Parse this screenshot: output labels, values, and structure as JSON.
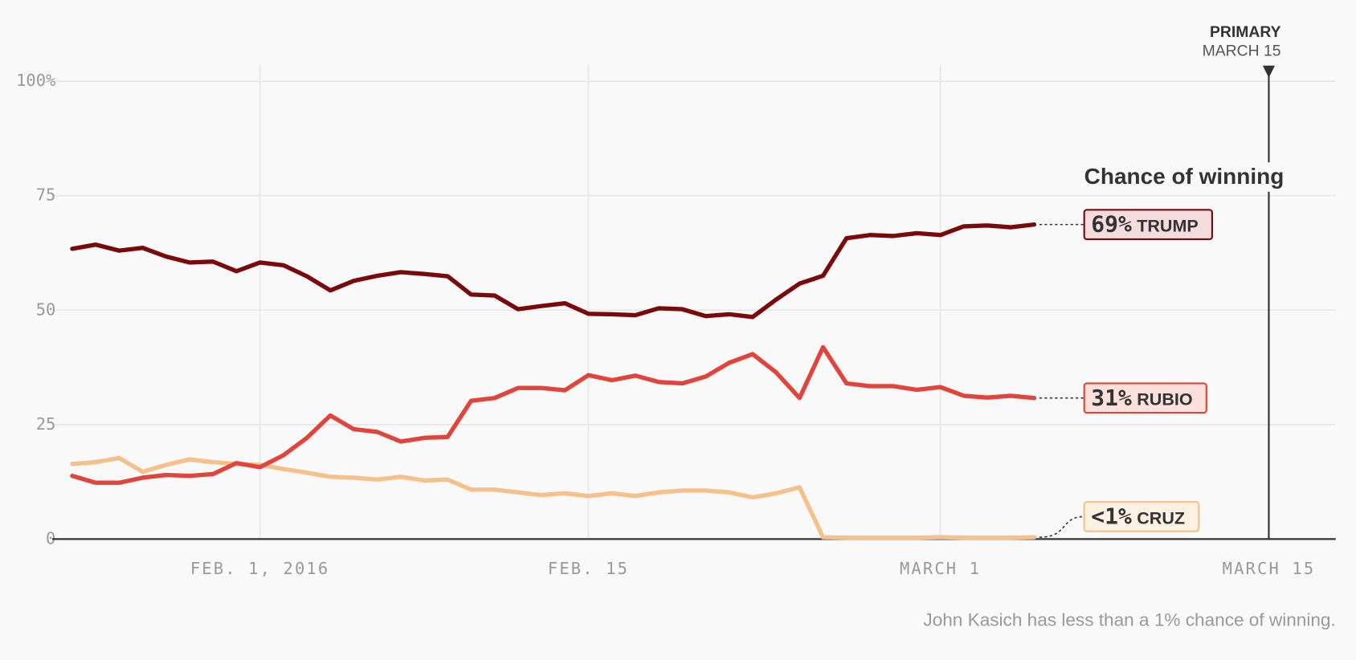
{
  "chart_data": {
    "type": "line",
    "x": [
      "2016-01-24",
      "2016-01-25",
      "2016-01-26",
      "2016-01-27",
      "2016-01-28",
      "2016-01-29",
      "2016-01-30",
      "2016-01-31",
      "2016-02-01",
      "2016-02-02",
      "2016-02-03",
      "2016-02-04",
      "2016-02-05",
      "2016-02-06",
      "2016-02-07",
      "2016-02-08",
      "2016-02-09",
      "2016-02-10",
      "2016-02-11",
      "2016-02-12",
      "2016-02-13",
      "2016-02-14",
      "2016-02-15",
      "2016-02-16",
      "2016-02-17",
      "2016-02-18",
      "2016-02-19",
      "2016-02-20",
      "2016-02-21",
      "2016-02-22",
      "2016-02-23",
      "2016-02-24",
      "2016-02-25",
      "2016-02-26",
      "2016-02-27",
      "2016-02-28",
      "2016-02-29",
      "2016-03-01",
      "2016-03-02",
      "2016-03-03",
      "2016-03-04",
      "2016-03-05"
    ],
    "series": [
      {
        "name": "TRUMP",
        "label": "69%",
        "color": "#7a0a0a",
        "label_fill": "#f4dcdc",
        "values": [
          63.4,
          64.3,
          63,
          63.6,
          61.7,
          60.4,
          60.6,
          58.5,
          60.4,
          59.8,
          57.4,
          54.3,
          56.4,
          57.5,
          58.3,
          57.9,
          57.4,
          53.4,
          53.2,
          50.2,
          50.9,
          51.5,
          49.2,
          49.1,
          48.9,
          50.4,
          50.2,
          48.7,
          49.1,
          48.5,
          52.3,
          55.8,
          57.5,
          65.7,
          66.4,
          66.2,
          66.8,
          66.4,
          68.3,
          68.5,
          68.1,
          68.7
        ]
      },
      {
        "name": "RUBIO",
        "label": "31%",
        "color": "#e0443a",
        "label_fill": "#fbe0de",
        "values": [
          13.8,
          12.3,
          12.3,
          13.4,
          14,
          13.8,
          14.2,
          16.6,
          15.7,
          18.3,
          22.1,
          27,
          24,
          23.4,
          21.3,
          22.1,
          22.3,
          30.2,
          30.8,
          33,
          33,
          32.5,
          35.8,
          34.7,
          35.7,
          34.3,
          34,
          35.5,
          38.5,
          40.4,
          36.4,
          30.8,
          41.9,
          34,
          33.4,
          33.4,
          32.6,
          33.2,
          31.3,
          30.9,
          31.3,
          30.8
        ]
      },
      {
        "name": "CRUZ",
        "label": "<1%",
        "color": "#f5c08a",
        "label_fill": "#fdf1e3",
        "values": [
          16.4,
          16.8,
          17.7,
          14.7,
          16.2,
          17.4,
          16.8,
          16.4,
          16.2,
          15.3,
          14.5,
          13.6,
          13.4,
          13,
          13.6,
          12.8,
          13,
          10.8,
          10.8,
          10.2,
          9.6,
          10,
          9.4,
          10,
          9.4,
          10.2,
          10.6,
          10.6,
          10.2,
          9.1,
          10,
          11.3,
          0.4,
          0.3,
          0.3,
          0.3,
          0.3,
          0.4,
          0.3,
          0.3,
          0.3,
          0.4
        ]
      }
    ],
    "xlim": [
      "2016-01-23",
      "2016-03-18"
    ],
    "xticks": [
      {
        "value": "2016-02-01",
        "label": "FEB. 1, 2016"
      },
      {
        "value": "2016-02-15",
        "label": "FEB. 15"
      },
      {
        "value": "2016-03-01",
        "label": "MARCH 1"
      },
      {
        "value": "2016-03-15",
        "label": "MARCH 15"
      }
    ],
    "ylim": [
      0,
      100
    ],
    "yticks": [
      0,
      25,
      50,
      75,
      {
        "value": 100,
        "label": "100%"
      }
    ],
    "grid": true,
    "legend_title": "Chance of winning",
    "annotation": {
      "x": "2016-03-15",
      "title": "PRIMARY",
      "subtitle": "MARCH 15"
    },
    "footnote": "John Kasich has less than a 1% chance of winning."
  }
}
